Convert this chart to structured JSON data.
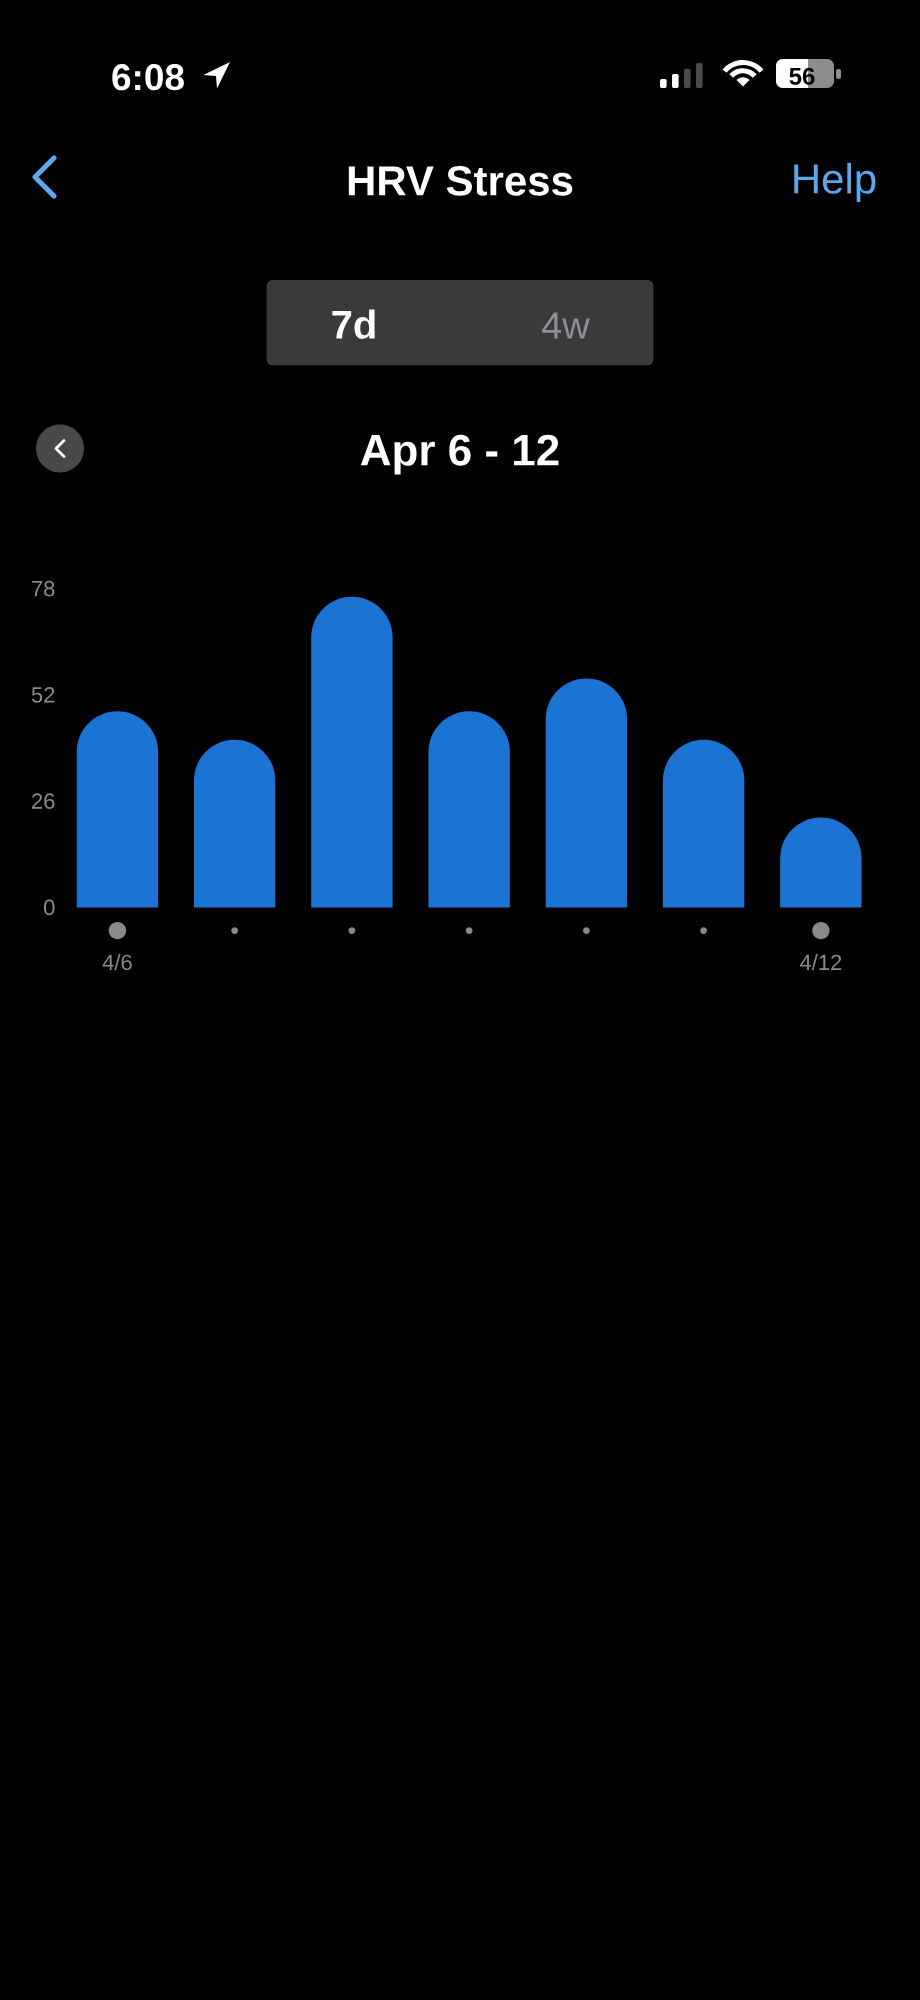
{
  "chart_data": {
    "type": "bar",
    "title": "HRV Stress",
    "subtitle": "Apr 6 - 12",
    "categories": [
      "4/6",
      null,
      null,
      null,
      null,
      null,
      "4/12"
    ],
    "values": [
      48,
      41,
      76,
      48,
      56,
      41,
      22
    ],
    "color": "#1b74d4",
    "ylim": [
      0,
      78
    ],
    "yticks": [
      0,
      26,
      52,
      78
    ],
    "annotations": [
      "6:08",
      "56",
      "Help",
      "7d",
      "4w"
    ]
  }
}
